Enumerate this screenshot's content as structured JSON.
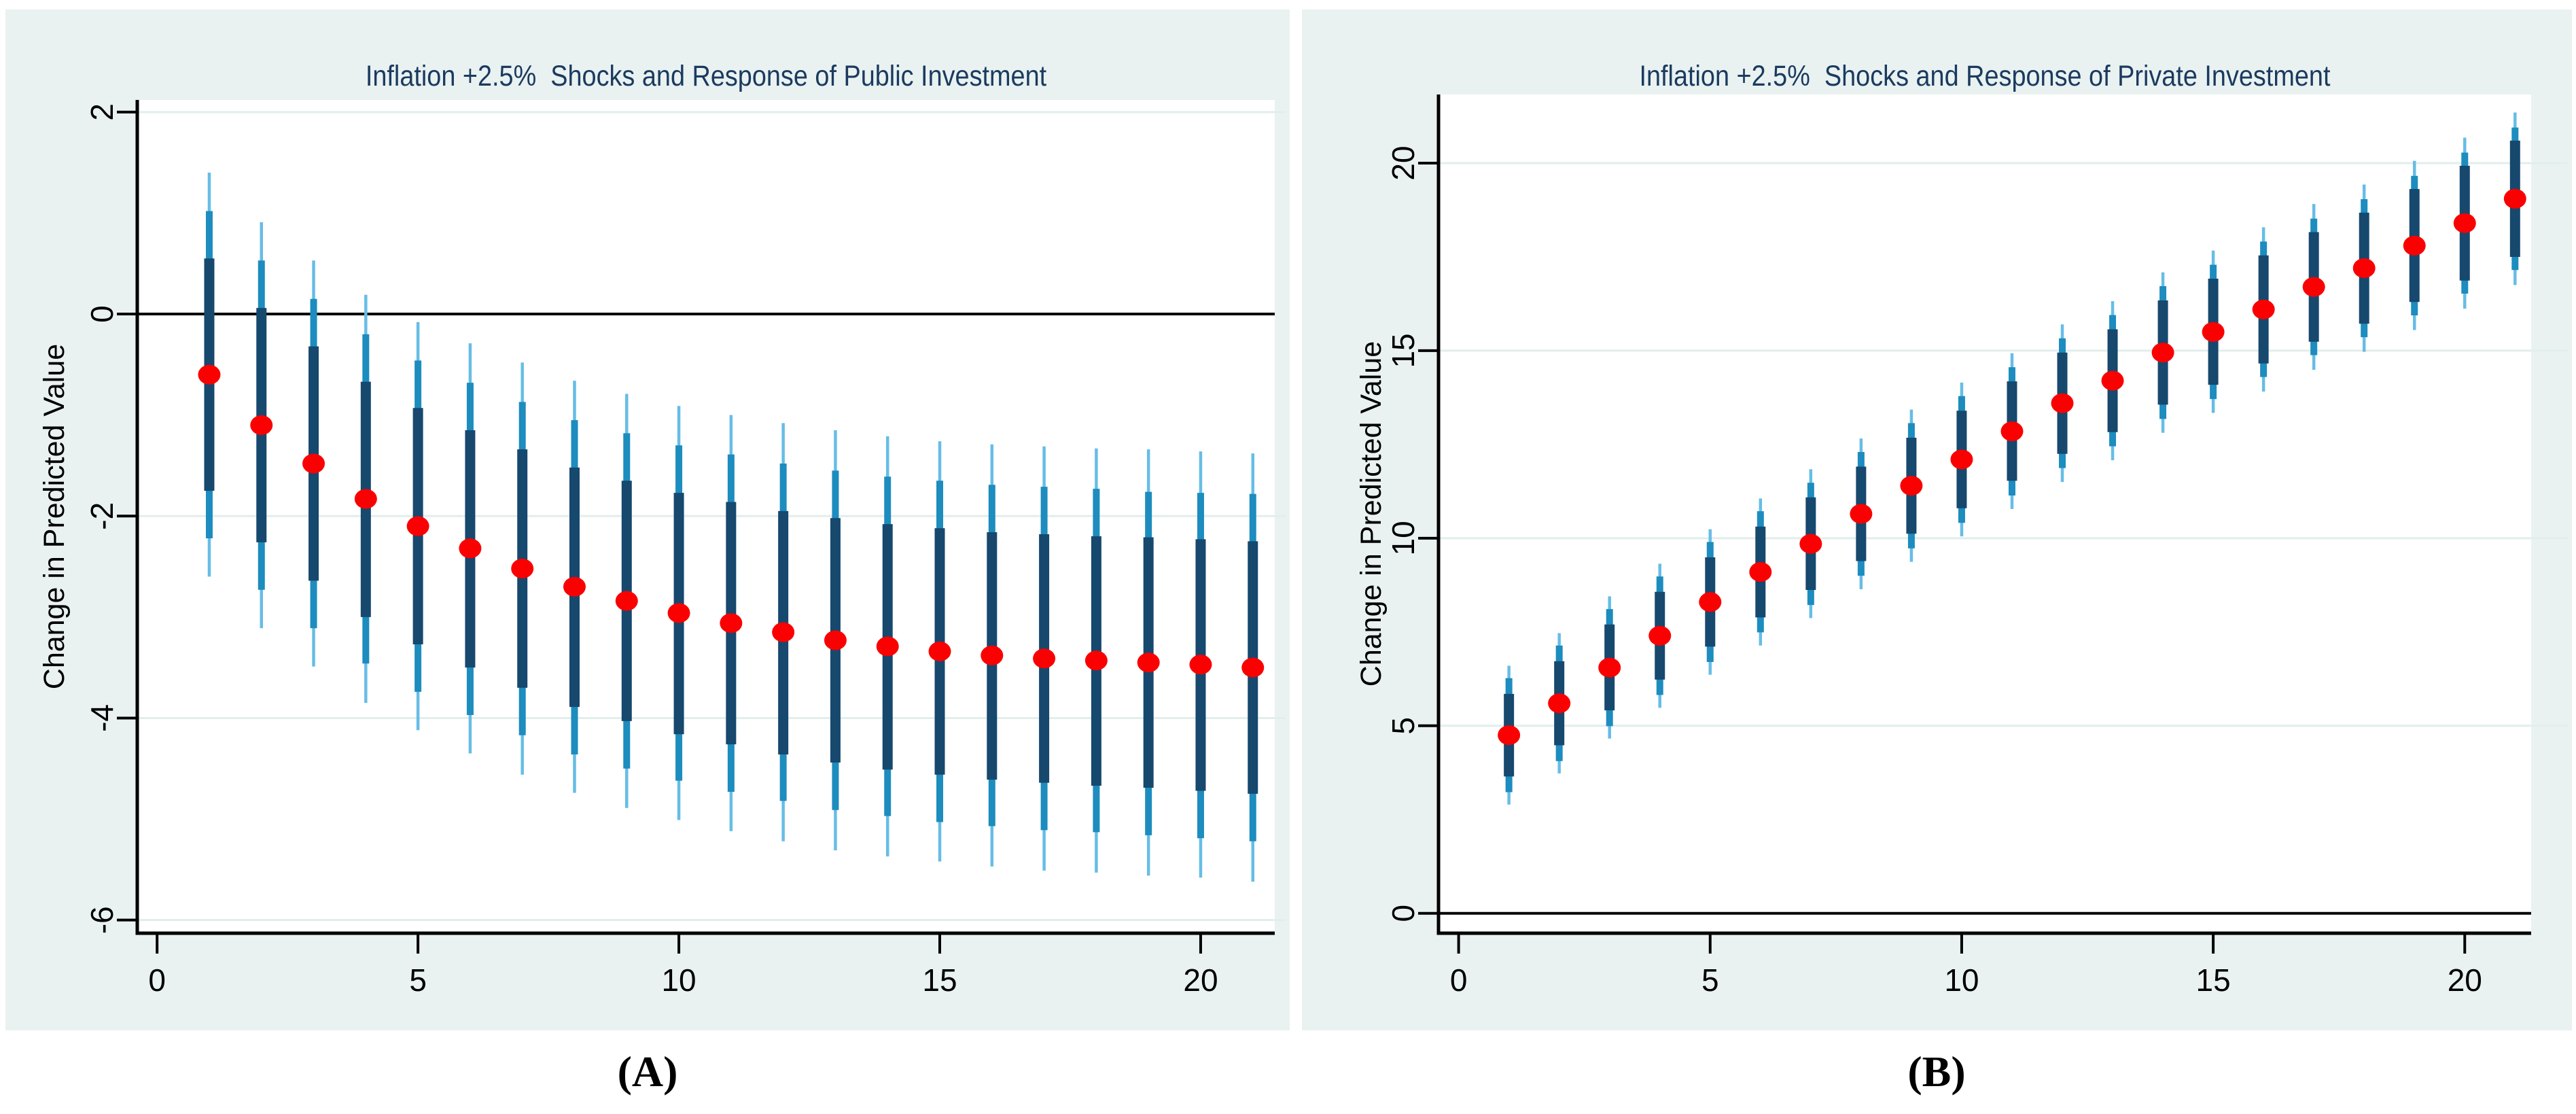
{
  "figure": {
    "captions": [
      {
        "label": "(A)"
      },
      {
        "label": "(B)"
      }
    ]
  },
  "colors": {
    "page_background": "#ffffff",
    "panel_background": "#e9f2f1",
    "plot_background": "#ffffff",
    "gridline": "#e2eeec",
    "zero_line": "#000000",
    "axis": "#000000",
    "ci_outer": "#66bde6",
    "ci_mid": "#1d8cbe",
    "ci_inner": "#17486e",
    "point": "#fb0000",
    "title_text": "#1b3a5f",
    "tick_text": "#000000"
  },
  "chart_data": [
    {
      "type": "scatter",
      "title": "Inflation +2.5%  Shocks and Response of Public Investment",
      "xlabel": "",
      "ylabel": "Change in Predicted Value",
      "legend": null,
      "grid": "horizontal",
      "zero_line": true,
      "x": [
        1,
        2,
        3,
        4,
        5,
        6,
        7,
        8,
        9,
        10,
        11,
        12,
        13,
        14,
        15,
        16,
        17,
        18,
        19,
        20,
        21
      ],
      "center": [
        -0.6,
        -1.1,
        -1.48,
        -1.83,
        -2.1,
        -2.32,
        -2.52,
        -2.7,
        -2.84,
        -2.96,
        -3.06,
        -3.15,
        -3.23,
        -3.29,
        -3.34,
        -3.38,
        -3.41,
        -3.43,
        -3.45,
        -3.47,
        -3.5
      ],
      "ci_inner_high": [
        0.55,
        0.06,
        -0.32,
        -0.67,
        -0.93,
        -1.15,
        -1.34,
        -1.52,
        -1.65,
        -1.77,
        -1.86,
        -1.95,
        -2.02,
        -2.08,
        -2.12,
        -2.16,
        -2.18,
        -2.2,
        -2.21,
        -2.23,
        -2.25
      ],
      "ci_inner_low": [
        -1.75,
        -2.26,
        -2.64,
        -3.0,
        -3.27,
        -3.5,
        -3.7,
        -3.89,
        -4.03,
        -4.16,
        -4.26,
        -4.36,
        -4.44,
        -4.51,
        -4.56,
        -4.61,
        -4.64,
        -4.67,
        -4.69,
        -4.72,
        -4.75
      ],
      "ci_mid_high": [
        1.02,
        0.53,
        0.15,
        -0.2,
        -0.46,
        -0.68,
        -0.87,
        -1.05,
        -1.18,
        -1.3,
        -1.39,
        -1.48,
        -1.55,
        -1.61,
        -1.65,
        -1.69,
        -1.71,
        -1.73,
        -1.76,
        -1.77,
        -1.78
      ],
      "ci_mid_low": [
        -2.22,
        -2.73,
        -3.11,
        -3.46,
        -3.74,
        -3.97,
        -4.17,
        -4.36,
        -4.5,
        -4.62,
        -4.73,
        -4.82,
        -4.91,
        -4.97,
        -5.03,
        -5.07,
        -5.11,
        -5.13,
        -5.16,
        -5.19,
        -5.22
      ],
      "ci_outer_high": [
        1.4,
        0.91,
        0.53,
        0.19,
        -0.08,
        -0.29,
        -0.48,
        -0.66,
        -0.79,
        -0.91,
        -1.0,
        -1.08,
        -1.15,
        -1.21,
        -1.26,
        -1.29,
        -1.31,
        -1.33,
        -1.34,
        -1.36,
        -1.38
      ],
      "ci_outer_low": [
        -2.6,
        -3.11,
        -3.49,
        -3.85,
        -4.12,
        -4.35,
        -4.56,
        -4.74,
        -4.89,
        -5.01,
        -5.12,
        -5.22,
        -5.31,
        -5.37,
        -5.42,
        -5.47,
        -5.51,
        -5.53,
        -5.56,
        -5.58,
        -5.62
      ],
      "xticks": [
        0,
        5,
        10,
        15,
        20
      ],
      "yticks": [
        2,
        0,
        -2,
        -4,
        -6
      ],
      "xlim": [
        -0.38,
        21.42
      ],
      "ylim": [
        -6.13,
        2.12
      ]
    },
    {
      "type": "scatter",
      "title": "Inflation +2.5%  Shocks and Response of Private Investment",
      "xlabel": "",
      "ylabel": "Change in Predicted Value",
      "legend": null,
      "grid": "horizontal",
      "zero_line": true,
      "x": [
        1,
        2,
        3,
        4,
        5,
        6,
        7,
        8,
        9,
        10,
        11,
        12,
        13,
        14,
        15,
        16,
        17,
        18,
        19,
        20,
        21
      ],
      "center": [
        4.75,
        5.6,
        6.55,
        7.4,
        8.3,
        9.1,
        9.85,
        10.65,
        11.4,
        12.1,
        12.85,
        13.6,
        14.2,
        14.95,
        15.5,
        16.1,
        16.7,
        17.2,
        17.8,
        18.4,
        19.05
      ],
      "ci_inner_high": [
        5.85,
        6.72,
        7.7,
        8.57,
        9.49,
        10.31,
        11.09,
        11.91,
        12.68,
        13.4,
        14.18,
        14.95,
        15.57,
        16.34,
        16.92,
        17.54,
        18.16,
        18.68,
        19.31,
        19.93,
        20.6
      ],
      "ci_inner_low": [
        3.65,
        4.48,
        5.41,
        6.23,
        7.11,
        7.89,
        8.62,
        9.39,
        10.12,
        10.8,
        11.53,
        12.25,
        12.83,
        13.56,
        14.09,
        14.66,
        15.24,
        15.72,
        16.3,
        16.87,
        17.5
      ],
      "ci_mid_high": [
        6.27,
        7.14,
        8.11,
        8.98,
        9.9,
        10.72,
        11.48,
        12.3,
        13.07,
        13.79,
        14.56,
        15.33,
        15.95,
        16.72,
        17.29,
        17.91,
        18.52,
        19.04,
        19.66,
        20.28,
        20.95
      ],
      "ci_mid_low": [
        3.23,
        4.06,
        4.99,
        5.82,
        6.7,
        7.49,
        8.22,
        9.0,
        9.73,
        10.41,
        11.14,
        11.87,
        12.45,
        13.18,
        13.71,
        14.3,
        14.88,
        15.36,
        15.94,
        16.52,
        17.15
      ],
      "ci_outer_high": [
        6.6,
        7.47,
        8.45,
        9.32,
        10.24,
        11.06,
        11.84,
        12.66,
        13.43,
        14.15,
        14.93,
        15.7,
        16.32,
        17.09,
        17.67,
        18.29,
        18.91,
        19.43,
        20.06,
        20.68,
        21.35
      ],
      "ci_outer_low": [
        2.9,
        3.73,
        4.66,
        5.48,
        6.36,
        7.14,
        7.87,
        8.64,
        9.37,
        10.05,
        10.78,
        11.5,
        12.08,
        12.81,
        13.34,
        13.91,
        14.49,
        14.97,
        15.55,
        16.12,
        16.75
      ],
      "xticks": [
        0,
        5,
        10,
        15,
        20
      ],
      "yticks": [
        0,
        5,
        10,
        15,
        20
      ],
      "xlim": [
        -0.4,
        21.32
      ],
      "ylim": [
        -0.53,
        21.83
      ]
    }
  ]
}
